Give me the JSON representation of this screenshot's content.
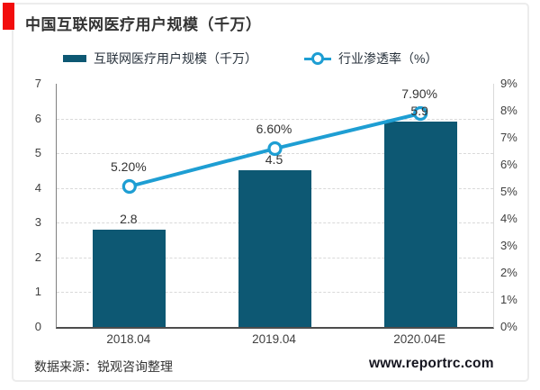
{
  "header": {
    "title": "中国互联网医疗用户规模（千万）",
    "accent_color": "#f20d0d"
  },
  "legend": {
    "bar_series": {
      "label": "互联网医疗用户规模（千万）",
      "color": "#0d5873"
    },
    "line_series": {
      "label": "行业渗透率（%）",
      "color": "#1e9ed3"
    }
  },
  "chart_data": {
    "type": "bar+line",
    "categories": [
      "2018.04",
      "2019.04",
      "2020.04E"
    ],
    "series": [
      {
        "name": "互联网医疗用户规模（千万）",
        "type": "bar",
        "axis": "left",
        "color": "#0d5873",
        "values": [
          2.8,
          4.5,
          5.9
        ],
        "labels": [
          "2.8",
          "4.5",
          "5.9"
        ]
      },
      {
        "name": "行业渗透率（%）",
        "type": "line",
        "axis": "right",
        "color": "#1e9ed3",
        "values": [
          5.2,
          6.6,
          7.9
        ],
        "labels": [
          "5.20%",
          "6.60%",
          "7.90%"
        ]
      }
    ],
    "left_axis": {
      "min": 0,
      "max": 7,
      "ticks": [
        "0",
        "1",
        "2",
        "3",
        "4",
        "5",
        "6",
        "7"
      ]
    },
    "right_axis": {
      "min": 0,
      "max": 9,
      "ticks": [
        "0%",
        "1%",
        "2%",
        "3%",
        "4%",
        "5%",
        "6%",
        "7%",
        "8%",
        "9%"
      ]
    },
    "grid": "horizontal dashed gridlines at left-axis integers 1-6",
    "legend_position": "top"
  },
  "footer": {
    "source": "数据来源：锐观咨询整理",
    "website": "www.reportrc.com"
  }
}
